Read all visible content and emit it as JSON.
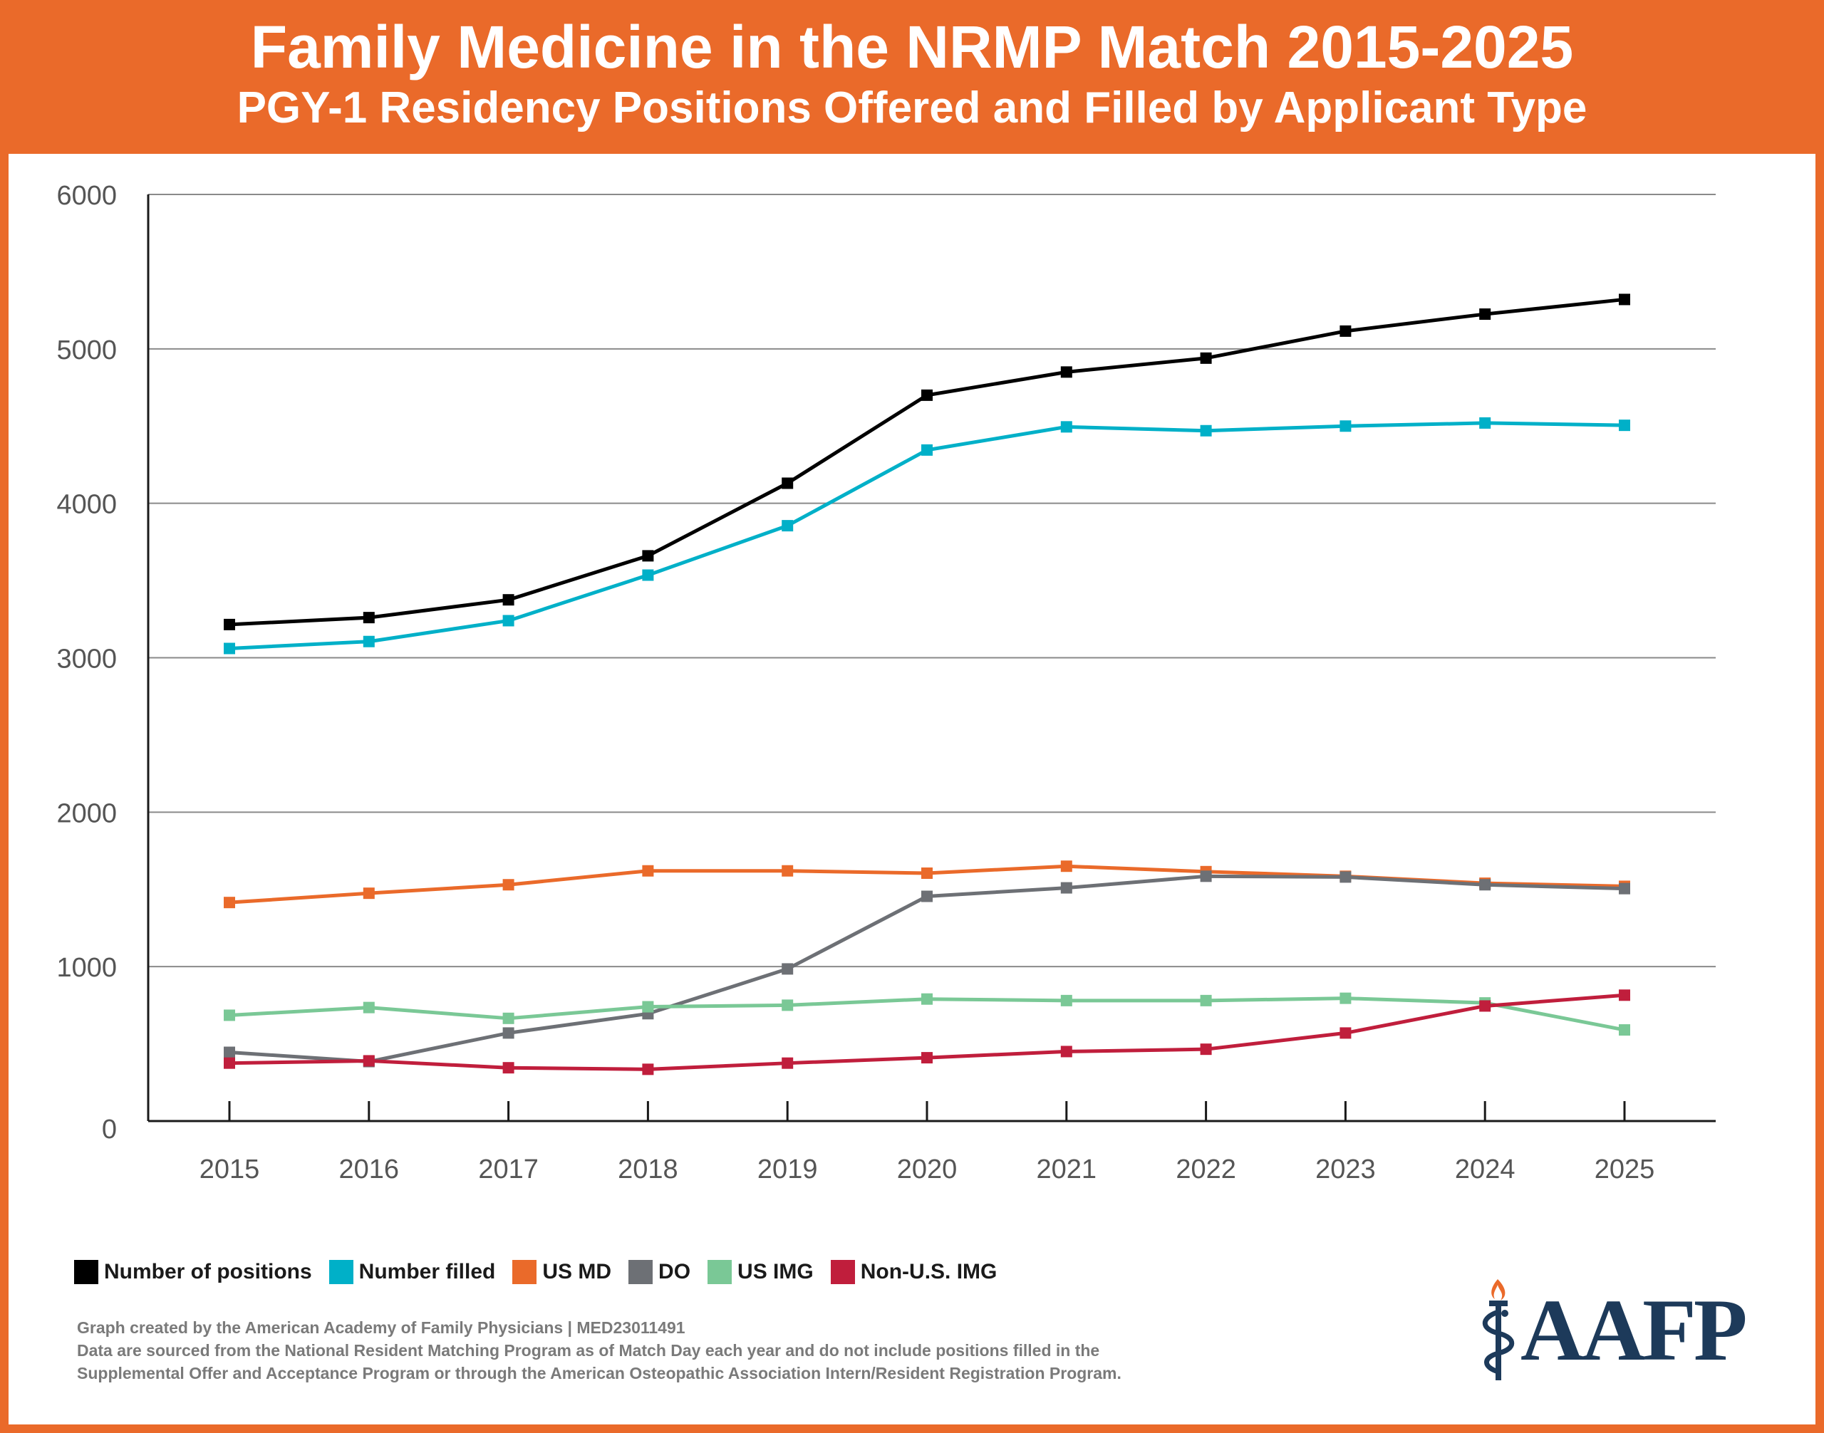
{
  "header": {
    "title": "Family Medicine in the NRMP Match 2015-2025",
    "subtitle": "PGY-1 Residency Positions Offered and Filled by Applicant Type"
  },
  "colors": {
    "header_bg": "#ea6a2a",
    "Number of positions": "#000000",
    "Number filled": "#00b0c8",
    "US MD": "#ea6a2a",
    "DO": "#6d7075",
    "US IMG": "#7ac896",
    "Non-U.S. IMG": "#c01e3c",
    "logo_navy": "#1d3a5a"
  },
  "chart_data": {
    "type": "line",
    "title": "Family Medicine in the NRMP Match 2015-2025",
    "subtitle": "PGY-1 Residency Positions Offered and Filled by Applicant Type",
    "xlabel": "",
    "ylabel": "",
    "ylim": [
      0,
      6000
    ],
    "yticks": [
      0,
      1000,
      2000,
      3000,
      4000,
      5000,
      6000
    ],
    "grid": true,
    "legend_position": "bottom-left",
    "marker": "square",
    "categories": [
      "2015",
      "2016",
      "2017",
      "2018",
      "2019",
      "2020",
      "2021",
      "2022",
      "2023",
      "2024",
      "2025"
    ],
    "series": [
      {
        "name": "Number of positions",
        "values": [
          3215,
          3260,
          3375,
          3660,
          4130,
          4700,
          4850,
          4940,
          5115,
          5225,
          5320
        ]
      },
      {
        "name": "Number filled",
        "values": [
          3060,
          3105,
          3240,
          3535,
          3855,
          4345,
          4495,
          4470,
          4500,
          4520,
          4505
        ]
      },
      {
        "name": "US MD",
        "values": [
          1415,
          1475,
          1530,
          1620,
          1620,
          1605,
          1650,
          1615,
          1585,
          1540,
          1520
        ]
      },
      {
        "name": "DO",
        "values": [
          445,
          385,
          570,
          695,
          985,
          1455,
          1510,
          1585,
          1580,
          1530,
          1505
        ]
      },
      {
        "name": "US IMG",
        "values": [
          685,
          735,
          665,
          740,
          750,
          790,
          780,
          780,
          795,
          765,
          590
        ]
      },
      {
        "name": "Non-U.S. IMG",
        "values": [
          375,
          390,
          345,
          335,
          375,
          410,
          450,
          465,
          570,
          745,
          815
        ]
      }
    ]
  },
  "footnote": {
    "line1": "Graph created by the American Academy of Family Physicians | MED23011491",
    "line2": "Data are sourced from the National Resident Matching Program as of Match Day each year and do not include positions filled in the",
    "line3": "Supplemental Offer and Acceptance Program or through the American Osteopathic Association Intern/Resident Registration Program."
  },
  "logo": {
    "text": "AAFP"
  }
}
